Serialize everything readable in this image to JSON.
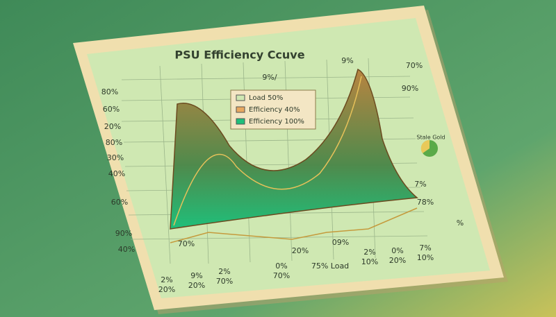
{
  "title": "PSU Efficiency Ccuve",
  "legend": [
    "Load 50%",
    "Efficiency 40%",
    "Efficiency 100%"
  ],
  "y_axis_labels": [
    "80%",
    "60%",
    "20%",
    "80%",
    "30%",
    "40%",
    "60%",
    "90%",
    "40%"
  ],
  "annotations": [
    "9%/",
    "9%",
    "%"
  ],
  "right_labels": [
    "70%",
    "90%",
    "Stale Gold",
    "7%",
    "78%"
  ],
  "curve_labels": [
    "70%",
    "20%",
    "09%"
  ],
  "bottom_labels": [
    "2%",
    "20%",
    "9%",
    "20%",
    "2%",
    "70%",
    "0%",
    "70%",
    "75% Load",
    "2%",
    "10%",
    "0%",
    "20%",
    "7%",
    "10%"
  ]
}
